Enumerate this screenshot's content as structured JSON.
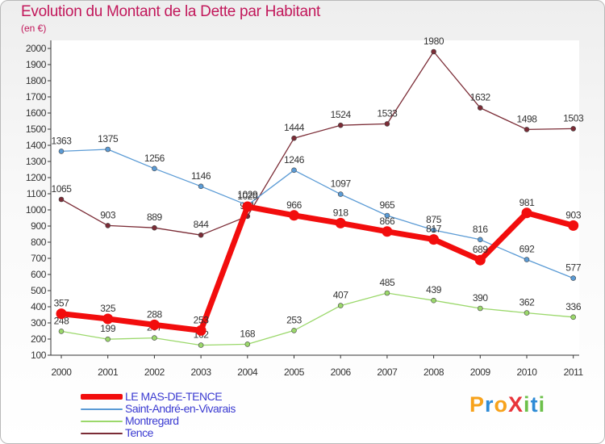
{
  "title": "Evolution du Montant de la Dette par Habitant",
  "unit_label": "(en €)",
  "logo": {
    "text": "ProXiti",
    "letters": [
      {
        "char": "P",
        "color": "#f7a21b"
      },
      {
        "char": "r",
        "color": "#2e8bd6"
      },
      {
        "char": "o",
        "color": "#f7a21b"
      },
      {
        "char": "X",
        "color": "#e8343a"
      },
      {
        "char": "i",
        "color": "#6cc04a"
      },
      {
        "char": "t",
        "color": "#2e8bd6"
      },
      {
        "char": "i",
        "color": "#6cc04a"
      }
    ]
  },
  "chart_data": {
    "type": "line",
    "title": "Evolution du Montant de la Dette par Habitant",
    "ylabel": "(en €)",
    "ylim": [
      100,
      2000
    ],
    "yticks": [
      100,
      200,
      300,
      400,
      500,
      600,
      700,
      800,
      900,
      1000,
      1100,
      1200,
      1300,
      1400,
      1500,
      1600,
      1700,
      1800,
      1900,
      2000
    ],
    "categories": [
      "2000",
      "2001",
      "2002",
      "2003",
      "2004",
      "2005",
      "2006",
      "2007",
      "2008",
      "2009",
      "2010",
      "2011"
    ],
    "grid": false,
    "legend_position": "bottom-left",
    "series": [
      {
        "name": "Tence",
        "color": "#7b2c36",
        "values": [
          1065,
          903,
          889,
          844,
          961,
          1444,
          1524,
          1533,
          1980,
          1632,
          1498,
          1503
        ],
        "labels": [
          "1065",
          "903",
          "889",
          "844",
          "961",
          "1444",
          "1524",
          "1533",
          "1980",
          "1632",
          "1498",
          "1503"
        ],
        "emphasis": false
      },
      {
        "name": "Saint-André-en-Vivarais",
        "color": "#5b9bd5",
        "values": [
          1363,
          1375,
          1256,
          1146,
          1029,
          1246,
          1097,
          965,
          875,
          816,
          692,
          577
        ],
        "labels": [
          "1363",
          "1375",
          "1256",
          "1146",
          "1029",
          "1246",
          "1097",
          "965",
          "875",
          "816",
          "692",
          "577"
        ],
        "emphasis": false
      },
      {
        "name": "Montregard",
        "color": "#9bd86b",
        "values": [
          248,
          199,
          207,
          162,
          168,
          253,
          407,
          485,
          439,
          390,
          362,
          336
        ],
        "labels": [
          "248",
          "199",
          "207",
          "162",
          "168",
          "253",
          "407",
          "485",
          "439",
          "390",
          "362",
          "336"
        ],
        "emphasis": false
      },
      {
        "name": "LE MAS-DE-TENCE",
        "color": "#f20d0d",
        "values": [
          357,
          325,
          288,
          253,
          1020,
          966,
          918,
          866,
          817,
          689,
          981,
          903
        ],
        "labels": [
          "357",
          "325",
          "288",
          "253",
          "1020",
          "966",
          "918",
          "866",
          "817",
          "689",
          "981",
          "903"
        ],
        "emphasis": true
      }
    ]
  },
  "legend": [
    {
      "name": "LE MAS-DE-TENCE",
      "color": "#f20d0d",
      "thick": true
    },
    {
      "name": "Saint-André-en-Vivarais",
      "color": "#5b9bd5",
      "thick": false
    },
    {
      "name": "Montregard",
      "color": "#9bd86b",
      "thick": false
    },
    {
      "name": "Tence",
      "color": "#7b2c36",
      "thick": false
    }
  ]
}
